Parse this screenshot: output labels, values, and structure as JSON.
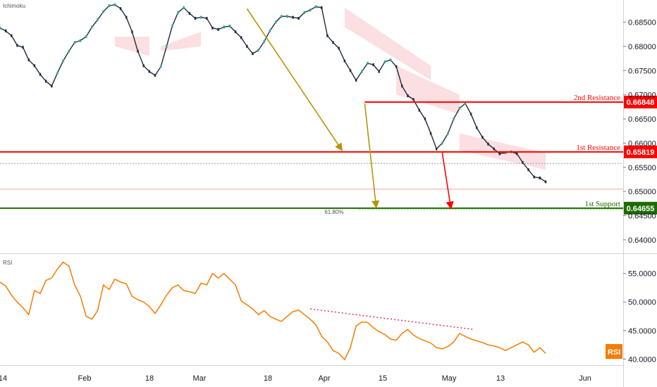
{
  "chart_data": [
    {
      "type": "line",
      "indicator_label": "Ichimoku",
      "y_ticks": [
        0.685,
        0.68,
        0.675,
        0.67,
        0.665,
        0.66,
        0.655,
        0.65,
        0.645,
        0.64
      ],
      "y_tick_labels": [
        "0.68500",
        "0.68000",
        "0.67500",
        "0.67000",
        "0.66500",
        "0.66000",
        "0.65500",
        "0.65000",
        "0.64500",
        "0.64000"
      ],
      "ylim": [
        0.6378,
        0.689
      ],
      "x_tick_labels": [
        "14",
        "Feb",
        "18",
        "Mar",
        "18",
        "Apr",
        "15",
        "May",
        "13",
        "Jun"
      ],
      "price_series": {
        "name": "price",
        "x": [
          0,
          2,
          4,
          6,
          8,
          10,
          12,
          14,
          16,
          18,
          20,
          22,
          24,
          26,
          28,
          30,
          32,
          34,
          36,
          38,
          40,
          42,
          44,
          46,
          48,
          50,
          52,
          54,
          56,
          58,
          60,
          62,
          64,
          66,
          68,
          70,
          72,
          74,
          76,
          78,
          80,
          82,
          84,
          86,
          88,
          90,
          92,
          94,
          96,
          98,
          100,
          102,
          104,
          106,
          108,
          110,
          112,
          114,
          116,
          118,
          120,
          122,
          124,
          126,
          128,
          130,
          132,
          134,
          136,
          138,
          140,
          142,
          144,
          146,
          148,
          150,
          152,
          154,
          156,
          158,
          160,
          162,
          164,
          166,
          168,
          170,
          172,
          174,
          176,
          178,
          180,
          182,
          184,
          186,
          188,
          190
        ],
        "y": [
          0.6838,
          0.6832,
          0.6822,
          0.6802,
          0.6798,
          0.6772,
          0.676,
          0.6742,
          0.6728,
          0.6718,
          0.6745,
          0.677,
          0.679,
          0.6808,
          0.6812,
          0.682,
          0.684,
          0.6855,
          0.6872,
          0.6884,
          0.6886,
          0.6878,
          0.686,
          0.683,
          0.679,
          0.676,
          0.6748,
          0.674,
          0.6758,
          0.68,
          0.6842,
          0.687,
          0.688,
          0.6868,
          0.6858,
          0.686,
          0.6858,
          0.6838,
          0.6835,
          0.684,
          0.6842,
          0.683,
          0.6818,
          0.68,
          0.6785,
          0.6792,
          0.681,
          0.6832,
          0.685,
          0.6862,
          0.6862,
          0.686,
          0.6858,
          0.687,
          0.6875,
          0.6882,
          0.688,
          0.6822,
          0.6808,
          0.6796,
          0.677,
          0.675,
          0.673,
          0.6748,
          0.6765,
          0.6762,
          0.6748,
          0.6768,
          0.6772,
          0.6758,
          0.6718,
          0.6698,
          0.669,
          0.6668,
          0.665,
          0.662,
          0.6588,
          0.66,
          0.662,
          0.665,
          0.6672,
          0.6682,
          0.666,
          0.6632,
          0.6612,
          0.6598,
          0.6588,
          0.6578,
          0.658,
          0.6582,
          0.6578,
          0.656,
          0.6545,
          0.653,
          0.6528,
          0.652
        ]
      },
      "levels": [
        {
          "name": "2nd Resistance",
          "value": 0.66848,
          "label": "0.66848",
          "color": "#ff0000"
        },
        {
          "name": "1st Resistance",
          "value": 0.65819,
          "label": "0.65819",
          "color": "#ff0000"
        },
        {
          "name": "1st Support",
          "value": 0.64655,
          "label": "0.64655",
          "color": "#1e6b00"
        }
      ],
      "fib_label": "61.80%",
      "dotted_levels": [
        0.6558
      ],
      "thin_levels": [
        0.6505
      ]
    },
    {
      "type": "line",
      "title": "RSI",
      "badge": "RSI",
      "y_ticks": [
        55,
        50,
        45,
        40
      ],
      "y_tick_labels": [
        "55.0000",
        "50.0000",
        "45.0000",
        "40.0000"
      ],
      "ylim": [
        39.3,
        57.8
      ],
      "series": [
        {
          "name": "RSI",
          "x": [
            0,
            2,
            4,
            6,
            8,
            10,
            12,
            14,
            16,
            18,
            20,
            22,
            24,
            26,
            28,
            30,
            32,
            34,
            36,
            38,
            40,
            42,
            44,
            46,
            48,
            50,
            52,
            54,
            56,
            58,
            60,
            62,
            64,
            66,
            68,
            70,
            72,
            74,
            76,
            78,
            80,
            82,
            84,
            86,
            88,
            90,
            92,
            94,
            96,
            98,
            100,
            102,
            104,
            106,
            108,
            110,
            112,
            114,
            116,
            118,
            120,
            122,
            124,
            126,
            128,
            130,
            132,
            134,
            136,
            138,
            140,
            142,
            144,
            146,
            148,
            150,
            152,
            154,
            156,
            158,
            160,
            162,
            164,
            166,
            168,
            170,
            172,
            174,
            176,
            178,
            180,
            182,
            184,
            186,
            188,
            190
          ],
          "y": [
            53.5,
            52.8,
            51.2,
            50.0,
            49.0,
            47.8,
            52.0,
            51.5,
            53.8,
            54.2,
            55.8,
            57.0,
            56.3,
            53.0,
            51.0,
            47.5,
            47.0,
            48.5,
            53.0,
            52.2,
            54.0,
            53.5,
            53.2,
            51.0,
            50.4,
            50.0,
            49.2,
            48.0,
            49.5,
            51.2,
            52.5,
            53.0,
            52.0,
            51.8,
            51.5,
            53.3,
            53.0,
            55.0,
            54.2,
            55.0,
            54.0,
            53.0,
            50.2,
            49.5,
            48.8,
            47.8,
            48.5,
            47.5,
            47.0,
            46.6,
            47.5,
            48.3,
            48.6,
            47.8,
            47.0,
            46.0,
            44.0,
            43.0,
            41.5,
            41.0,
            39.9,
            42.0,
            45.8,
            46.5,
            46.4,
            45.5,
            44.8,
            44.3,
            43.5,
            43.3,
            44.5,
            45.2,
            44.2,
            43.6,
            43.2,
            42.8,
            42.0,
            41.8,
            42.2,
            43.0,
            44.5,
            44.0,
            43.5,
            43.2,
            42.9,
            42.5,
            42.3,
            42.0,
            41.5,
            42.0,
            42.5,
            43.0,
            42.5,
            41.2,
            42.0,
            41.0
          ],
          "color": "#f57c00"
        },
        {
          "name": "trendline",
          "x": [
            108,
            165
          ],
          "y": [
            48.8,
            45.2
          ],
          "color": "#e53950"
        }
      ]
    }
  ],
  "arrows": [
    {
      "name": "arrow-1",
      "x0": 86,
      "y0": 0.6878,
      "x1": 119,
      "y1": 0.6586,
      "color": "#b5960b"
    },
    {
      "name": "arrow-2",
      "x0": 127,
      "y0": 0.6682,
      "x1": 131,
      "y1": 0.6468,
      "color": "#b5960b"
    },
    {
      "name": "arrow-3",
      "x0": 154,
      "y0": 0.658,
      "x1": 157,
      "y1": 0.6466,
      "color": "#ff0000"
    }
  ]
}
